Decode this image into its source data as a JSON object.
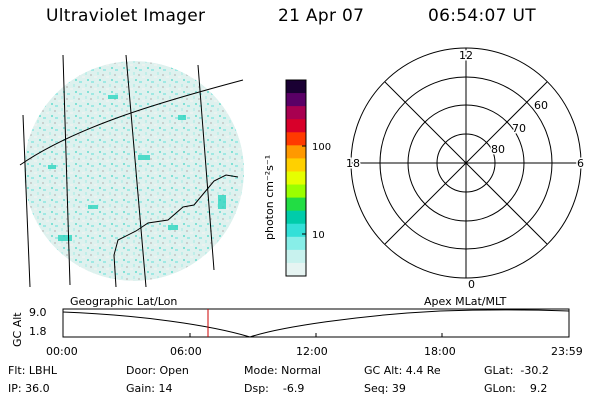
{
  "header": {
    "instrument": "Ultraviolet Imager",
    "date": "21 Apr 07",
    "time": "06:54:07 UT"
  },
  "colorbar": {
    "label": "photon cm⁻²s⁻¹",
    "ticks": [
      "100",
      "10"
    ],
    "colors": [
      "#1a0033",
      "#5a0066",
      "#a80050",
      "#d8002a",
      "#ff3a00",
      "#ff9900",
      "#ffd000",
      "#e6ff00",
      "#9bff00",
      "#22dd44",
      "#00ccaa",
      "#33e0d8",
      "#88eee8",
      "#c8f2ee",
      "#e6f4f2"
    ]
  },
  "polar_plot": {
    "hour_labels": {
      "top": "12",
      "left": "18",
      "right": "6",
      "bottom": "0"
    },
    "lat_labels": [
      "60",
      "70",
      "80"
    ]
  },
  "ephemeris": {
    "left_label": "Geographic Lat/Lon",
    "right_label": "Apex  MLat/MLT",
    "yaxis_title": "GC Alt",
    "yticks": [
      "9.0",
      "1.8"
    ],
    "xticks": [
      "00:00",
      "06:00",
      "12:00",
      "18:00",
      "23:59"
    ],
    "current_time_color": "#cc0000"
  },
  "info": {
    "flt": "Flt: LBHL",
    "ip": "IP: 36.0",
    "door": "Door: Open",
    "gain": "Gain: 14",
    "mode": "Mode: Normal",
    "dsp": "Dsp:    -6.9",
    "gc_alt": "GC Alt: 4.4 Re",
    "seq": "Seq: 39",
    "glat": "GLat:  -30.2",
    "glon": "GLon:    9.2"
  }
}
